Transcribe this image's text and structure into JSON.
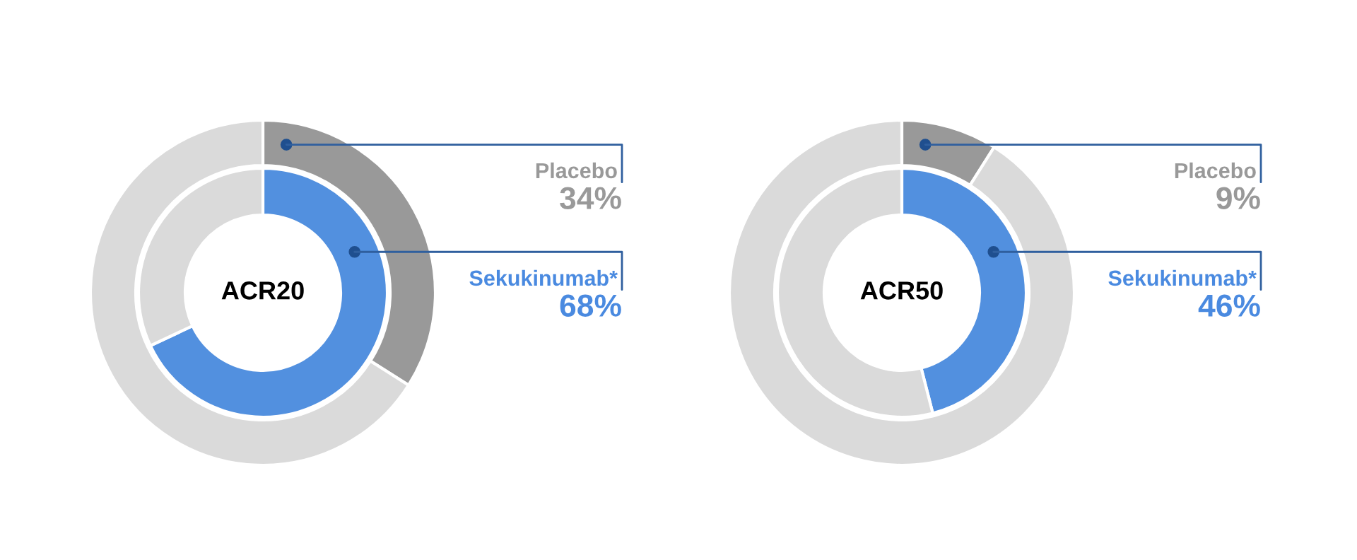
{
  "chart_data": [
    {
      "type": "donut",
      "title": "ACR20",
      "categories": [
        null,
        null
      ],
      "series": [
        {
          "name": "Placebo",
          "values": [
            34,
            66
          ],
          "colors": [
            "#999999",
            "#dadada"
          ],
          "value_labels": [
            "34%",
            null
          ]
        },
        {
          "name": "Sekukinumab*",
          "values": [
            68,
            32
          ],
          "colors": [
            "#5290df",
            "#dadada"
          ],
          "value_labels": [
            "68%",
            null
          ]
        }
      ]
    },
    {
      "type": "donut",
      "title": "ACR50",
      "categories": [
        null,
        null
      ],
      "series": [
        {
          "name": "Placebo",
          "values": [
            9,
            91
          ],
          "colors": [
            "#999999",
            "#dadada"
          ],
          "value_labels": [
            "9%",
            null
          ]
        },
        {
          "name": "Sekukinumab*",
          "values": [
            46,
            54
          ],
          "colors": [
            "#5290df",
            "#dadada"
          ],
          "value_labels": [
            "46%",
            null
          ]
        }
      ]
    }
  ]
}
